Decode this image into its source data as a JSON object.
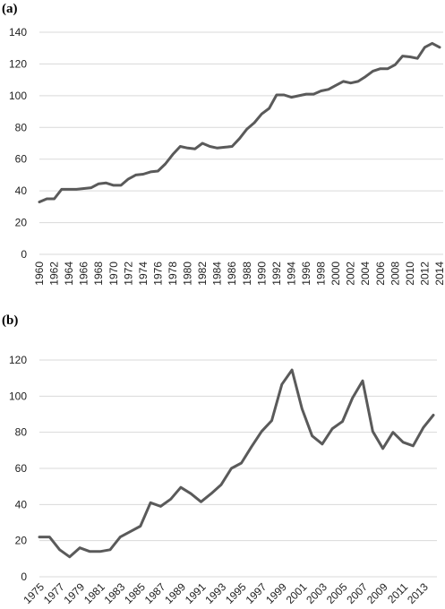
{
  "panels": {
    "a_label": "(a)",
    "b_label": "(b)"
  },
  "chart_data": [
    {
      "type": "line",
      "panel": "(a)",
      "title": "",
      "xlabel": "",
      "ylabel": "",
      "ylim": [
        0,
        140
      ],
      "yticks": [
        0,
        20,
        40,
        60,
        80,
        100,
        120,
        140
      ],
      "grid": true,
      "x": [
        1960,
        1961,
        1962,
        1963,
        1964,
        1965,
        1966,
        1967,
        1968,
        1969,
        1970,
        1971,
        1972,
        1973,
        1974,
        1975,
        1976,
        1977,
        1978,
        1979,
        1980,
        1981,
        1982,
        1983,
        1984,
        1985,
        1986,
        1987,
        1988,
        1989,
        1990,
        1991,
        1992,
        1993,
        1994,
        1995,
        1996,
        1997,
        1998,
        1999,
        2000,
        2001,
        2002,
        2003,
        2004,
        2005,
        2006,
        2007,
        2008,
        2009,
        2010,
        2011,
        2012,
        2013,
        2014
      ],
      "xticks": [
        "1960",
        "1962",
        "1964",
        "1966",
        "1968",
        "1970",
        "1972",
        "1974",
        "1976",
        "1978",
        "1980",
        "1982",
        "1984",
        "1986",
        "1988",
        "1990",
        "1992",
        "1994",
        "1996",
        "1998",
        "2000",
        "2002",
        "2004",
        "2006",
        "2008",
        "2010",
        "2012",
        "2014"
      ],
      "values": [
        33,
        35,
        35,
        41,
        41,
        41,
        41.5,
        42,
        44.5,
        45,
        43.5,
        43.5,
        47.5,
        50,
        50.5,
        52,
        52.5,
        57,
        63,
        68,
        67,
        66.5,
        70,
        68,
        67,
        67.5,
        68,
        73,
        79,
        83,
        88.5,
        92,
        100.5,
        100.5,
        99,
        100,
        101,
        101,
        103,
        104,
        106.5,
        109,
        108,
        109,
        112,
        115.5,
        117,
        117,
        119.5,
        125,
        124.5,
        123.5,
        130.5,
        133,
        130.5
      ]
    },
    {
      "type": "line",
      "panel": "(b)",
      "title": "",
      "xlabel": "",
      "ylabel": "",
      "ylim": [
        0,
        120
      ],
      "yticks": [
        0,
        20,
        40,
        60,
        80,
        100,
        120
      ],
      "grid": true,
      "x": [
        1975,
        1976,
        1977,
        1978,
        1979,
        1980,
        1981,
        1982,
        1983,
        1984,
        1985,
        1986,
        1987,
        1988,
        1989,
        1990,
        1991,
        1992,
        1993,
        1994,
        1995,
        1996,
        1997,
        1998,
        1999,
        2000,
        2001,
        2002,
        2003,
        2004,
        2005,
        2006,
        2007,
        2008,
        2009,
        2010,
        2011,
        2012,
        2013,
        2014
      ],
      "xticks": [
        "1975",
        "1977",
        "1979",
        "1981",
        "1983",
        "1985",
        "1987",
        "1989",
        "1991",
        "1993",
        "1995",
        "1997",
        "1999",
        "2001",
        "2003",
        "2005",
        "2007",
        "2009",
        "2011",
        "2013"
      ],
      "values": [
        22,
        22,
        15,
        11,
        16,
        14,
        14,
        15,
        22,
        25,
        28,
        41,
        39,
        43,
        49.5,
        46,
        41.5,
        46,
        51,
        60,
        63,
        72,
        80.5,
        86.5,
        106.5,
        114.5,
        93,
        78,
        73.5,
        82,
        86,
        99,
        108.5,
        80.5,
        71,
        80,
        74.5,
        72.5,
        82.5,
        89.5
      ]
    }
  ]
}
